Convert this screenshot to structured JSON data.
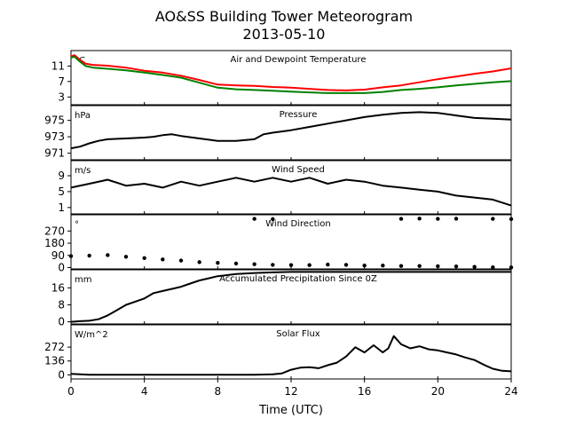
{
  "figure": {
    "title_line1": "AO&SS Building Tower Meteorogram",
    "title_line2": "2013-05-10",
    "xlabel": "Time (UTC)",
    "xticks": [
      "0",
      "4",
      "8",
      "12",
      "16",
      "20",
      "24"
    ],
    "colors": {
      "temperature": "#ff0000",
      "dewpoint": "#008000",
      "other": "#000000"
    }
  },
  "chart_data": [
    {
      "type": "line",
      "title": "Air and Dewpoint Temperature",
      "unit": "°C",
      "ylim": [
        1,
        15
      ],
      "yticks": [
        "3",
        "7",
        "11"
      ],
      "x": [
        0,
        0.2,
        0.5,
        0.8,
        1.2,
        2,
        3,
        4,
        5,
        6,
        7,
        8,
        9,
        10,
        11,
        12,
        13,
        14,
        15,
        16,
        17,
        18,
        19,
        20,
        21,
        22,
        23,
        24
      ],
      "series": [
        {
          "key": "temperature",
          "values": [
            13.5,
            13.8,
            12.6,
            11.6,
            11.3,
            11.1,
            10.6,
            9.8,
            9.3,
            8.5,
            7.4,
            6.2,
            6.0,
            5.9,
            5.6,
            5.4,
            5.1,
            4.8,
            4.7,
            4.9,
            5.5,
            6.0,
            6.8,
            7.6,
            8.3,
            9.0,
            9.6,
            10.4
          ]
        },
        {
          "key": "dewpoint",
          "values": [
            13.2,
            13.4,
            12.1,
            11.0,
            10.6,
            10.3,
            9.9,
            9.3,
            8.7,
            8.0,
            6.7,
            5.4,
            5.0,
            4.8,
            4.6,
            4.4,
            4.2,
            4.0,
            4.0,
            4.0,
            4.3,
            4.8,
            5.1,
            5.5,
            6.0,
            6.4,
            6.8,
            7.1
          ]
        }
      ]
    },
    {
      "type": "line",
      "title": "Pressure",
      "unit": "hPa",
      "ylim": [
        970.2,
        976.8
      ],
      "yticks": [
        "971",
        "973",
        "975"
      ],
      "x": [
        0,
        0.5,
        1,
        1.5,
        2,
        3,
        4,
        4.5,
        5,
        5.5,
        6,
        7,
        8,
        9,
        10,
        10.5,
        11,
        12,
        13,
        14,
        15,
        16,
        17,
        18,
        19,
        20,
        21,
        22,
        23,
        24
      ],
      "series": [
        {
          "key": "other",
          "values": [
            971.6,
            971.8,
            972.2,
            972.5,
            972.7,
            972.8,
            972.9,
            973.0,
            973.2,
            973.3,
            973.1,
            972.8,
            972.5,
            972.5,
            972.7,
            973.3,
            973.5,
            973.8,
            974.2,
            974.6,
            975.0,
            975.4,
            975.7,
            975.9,
            976.0,
            975.9,
            975.6,
            975.3,
            975.2,
            975.1
          ]
        }
      ]
    },
    {
      "type": "line",
      "title": "Wind Speed",
      "unit": "m/s",
      "ylim": [
        -0.6,
        12.8
      ],
      "yticks": [
        "1",
        "5",
        "9"
      ],
      "x": [
        0,
        1,
        2,
        3,
        4,
        5,
        6,
        7,
        8,
        9,
        10,
        11,
        12,
        13,
        14,
        15,
        16,
        17,
        18,
        19,
        20,
        21,
        22,
        23,
        24
      ],
      "series": [
        {
          "key": "other",
          "values": [
            6,
            7,
            8,
            6.5,
            7,
            6,
            7.5,
            6.5,
            7.5,
            8.5,
            7.5,
            8.5,
            7.5,
            8.5,
            7,
            8,
            7.5,
            6.5,
            6,
            5.5,
            5,
            4,
            3.5,
            3,
            1.5
          ]
        }
      ]
    },
    {
      "type": "scatter",
      "title": "Wind Direction",
      "unit": "°",
      "ylim": [
        -10,
        390
      ],
      "yticks": [
        "0",
        "90",
        "180",
        "270"
      ],
      "x": [
        0,
        1,
        2,
        3,
        4,
        5,
        6,
        7,
        8,
        9,
        10,
        11,
        12,
        13,
        14,
        15,
        16,
        17,
        18,
        19,
        20,
        21,
        22,
        23,
        24
      ],
      "series": [
        {
          "key": "other",
          "values": [
            85,
            88,
            92,
            80,
            70,
            60,
            52,
            40,
            35,
            30,
            25,
            20,
            18,
            18,
            22,
            20,
            15,
            15,
            12,
            12,
            10,
            8,
            5,
            2,
            1
          ]
        },
        {
          "key": "other",
          "values": [
            null,
            null,
            null,
            null,
            null,
            null,
            null,
            null,
            null,
            null,
            360,
            358,
            null,
            null,
            null,
            null,
            null,
            null,
            360,
            362,
            360,
            361,
            null,
            360,
            358
          ]
        }
      ]
    },
    {
      "type": "line",
      "title": "Accumulated Precipitation Since 0Z",
      "unit": "mm",
      "ylim": [
        -1,
        24.5
      ],
      "yticks": [
        "0",
        "8",
        "16"
      ],
      "x": [
        0,
        0.5,
        1,
        1.5,
        2,
        2.5,
        3,
        3.5,
        4,
        4.5,
        5,
        5.5,
        6,
        6.5,
        7,
        7.5,
        8,
        8.5,
        9,
        10,
        11,
        12,
        24
      ],
      "series": [
        {
          "key": "other",
          "values": [
            0,
            0.3,
            0.5,
            1.2,
            3.0,
            5.5,
            8.0,
            9.5,
            11.0,
            13.5,
            14.5,
            15.5,
            16.5,
            18.0,
            19.5,
            20.5,
            21.5,
            22.0,
            22.5,
            23.0,
            23.3,
            23.5,
            23.5
          ]
        }
      ]
    },
    {
      "type": "line",
      "title": "Solar Flux",
      "unit": "W/m^2",
      "ylim": [
        -40,
        490
      ],
      "yticks": [
        "0",
        "136",
        "272"
      ],
      "x": [
        0,
        0.5,
        1,
        2,
        4,
        6,
        8,
        10,
        11,
        11.5,
        12,
        12.5,
        13,
        13.5,
        14,
        14.5,
        15,
        15.5,
        16,
        16.5,
        17,
        17.3,
        17.6,
        18,
        18.5,
        19,
        19.5,
        20,
        20.5,
        21,
        21.5,
        22,
        22.5,
        23,
        23.5,
        24
      ],
      "series": [
        {
          "key": "other",
          "values": [
            10,
            5,
            2,
            2,
            2,
            2,
            2,
            2,
            5,
            15,
            50,
            70,
            75,
            65,
            95,
            120,
            180,
            270,
            220,
            290,
            220,
            260,
            380,
            300,
            260,
            280,
            250,
            240,
            220,
            200,
            170,
            145,
            100,
            60,
            40,
            35
          ]
        }
      ]
    }
  ]
}
